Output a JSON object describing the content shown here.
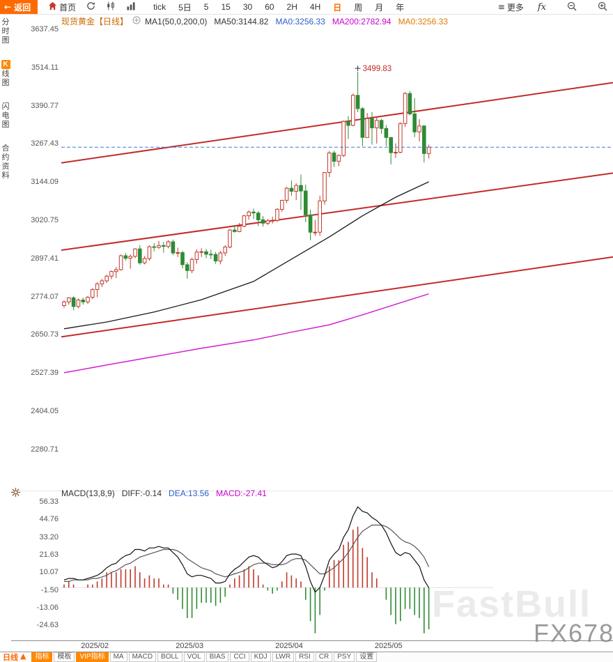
{
  "icons": {
    "back_arrow": "←",
    "hamburger": "≡",
    "up_triangle": "▲"
  },
  "toolbar": {
    "back_label": "返回",
    "home_label": "首页",
    "timeframes": [
      "tick",
      "5日",
      "5",
      "15",
      "30",
      "60",
      "2H",
      "4H",
      "日",
      "周",
      "月",
      "年"
    ],
    "selected_timeframe": "日",
    "more_label": "更多",
    "fx_label": "fx"
  },
  "sidebar": {
    "items": [
      {
        "name": "time-chart",
        "label": "分时图",
        "active": false
      },
      {
        "name": "kline-chart",
        "label": "K线图",
        "active": true
      },
      {
        "name": "lightning-chart",
        "label": "闪电图",
        "active": false
      },
      {
        "name": "contract-info",
        "label": "合约资料",
        "active": false
      }
    ]
  },
  "chart_header": {
    "symbol": "现货黄金【日线】",
    "items": [
      {
        "text": "MA1(50,0,200,0)",
        "color": "#333333"
      },
      {
        "text": "MA50:3144.82",
        "color": "#333333"
      },
      {
        "text": "MA0:3256.33",
        "color": "#2b5fc7"
      },
      {
        "text": "MA200:2782.94",
        "color": "#cc00cc"
      },
      {
        "text": "MA0:3256.33",
        "color": "#e07b00"
      }
    ]
  },
  "macd_header": {
    "items": [
      {
        "text": "MACD(13,8,9)",
        "color": "#333333"
      },
      {
        "text": "DIFF:-0.14",
        "color": "#333333"
      },
      {
        "text": "DEA:13.56",
        "color": "#2b5fc7"
      },
      {
        "text": "MACD:-27.41",
        "color": "#cc00cc"
      }
    ]
  },
  "watermark": {
    "fastbull": "FastBull",
    "fx678": "FX678"
  },
  "bottom_bar": {
    "period_label": "日线",
    "tabs": [
      {
        "label": "指标",
        "style": "orange"
      },
      {
        "label": "模板",
        "style": "plain"
      },
      {
        "label": "VIP指标",
        "style": "orange"
      },
      {
        "label": "MA",
        "style": "plain"
      },
      {
        "label": "MACD",
        "style": "plain"
      },
      {
        "label": "BOLL",
        "style": "plain"
      },
      {
        "label": "VOL",
        "style": "plain"
      },
      {
        "label": "BIAS",
        "style": "plain"
      },
      {
        "label": "CCI",
        "style": "plain"
      },
      {
        "label": "KDJ",
        "style": "plain"
      },
      {
        "label": "LWR",
        "style": "plain"
      },
      {
        "label": "RSI",
        "style": "plain"
      },
      {
        "label": "CR",
        "style": "plain"
      },
      {
        "label": "PSY",
        "style": "plain"
      },
      {
        "label": "设置",
        "style": "plain"
      }
    ]
  },
  "chart_data": {
    "type": "candlestick",
    "title": "现货黄金 日线",
    "main": {
      "y_ticks": [
        3637.45,
        3514.11,
        3390.77,
        3267.43,
        3144.09,
        3020.75,
        2897.41,
        2774.07,
        2650.73,
        2527.39,
        2404.05,
        2280.71
      ],
      "x_labels": [
        {
          "label": "2025/02",
          "index": 7
        },
        {
          "label": "2025/03",
          "index": 27
        },
        {
          "label": "2025/04",
          "index": 48
        },
        {
          "label": "2025/05",
          "index": 69
        }
      ],
      "colors": {
        "up": "#c0392b",
        "down": "#2e8b34",
        "trendline": "#c22b2b",
        "last_price": "#3b7dd8",
        "ma50": "#1a1a1a",
        "ma200": "#d020d0"
      },
      "last_price_line": 3256.33,
      "annotation": {
        "text": "3499.83",
        "candle_index": 62,
        "color": "#c22b2b"
      },
      "trendlines": [
        {
          "price_left": 3206,
          "price_right": 3465
        },
        {
          "price_left": 2924,
          "price_right": 3173
        },
        {
          "price_left": 2644,
          "price_right": 2902
        }
      ],
      "ma50_points": [
        [
          0,
          2670
        ],
        [
          9,
          2692
        ],
        [
          19,
          2724
        ],
        [
          29,
          2764
        ],
        [
          40,
          2823
        ],
        [
          48,
          2895
        ],
        [
          56,
          2967
        ],
        [
          63,
          3035
        ],
        [
          70,
          3095
        ],
        [
          77,
          3144.82
        ]
      ],
      "ma200_points": [
        [
          0,
          2528
        ],
        [
          9,
          2553
        ],
        [
          19,
          2580
        ],
        [
          29,
          2607
        ],
        [
          40,
          2634
        ],
        [
          48,
          2659
        ],
        [
          56,
          2683
        ],
        [
          63,
          2715
        ],
        [
          70,
          2749
        ],
        [
          77,
          2782.94
        ]
      ],
      "candles": [
        [
          "2025-01-23",
          2745,
          2762,
          2738,
          2757
        ],
        [
          "2025-01-24",
          2757,
          2772,
          2748,
          2770
        ],
        [
          "2025-01-27",
          2770,
          2775,
          2730,
          2742
        ],
        [
          "2025-01-28",
          2742,
          2768,
          2736,
          2763
        ],
        [
          "2025-01-29",
          2763,
          2771,
          2748,
          2757
        ],
        [
          "2025-01-30",
          2757,
          2776,
          2750,
          2772
        ],
        [
          "2025-01-31",
          2772,
          2801,
          2765,
          2797
        ],
        [
          "2025-02-03",
          2797,
          2820,
          2772,
          2815
        ],
        [
          "2025-02-04",
          2815,
          2831,
          2805,
          2825
        ],
        [
          "2025-02-05",
          2825,
          2845,
          2818,
          2840
        ],
        [
          "2025-02-06",
          2840,
          2858,
          2830,
          2855
        ],
        [
          "2025-02-07",
          2855,
          2870,
          2834,
          2861
        ],
        [
          "2025-02-10",
          2861,
          2910,
          2858,
          2906
        ],
        [
          "2025-02-11",
          2906,
          2915,
          2890,
          2898
        ],
        [
          "2025-02-12",
          2898,
          2910,
          2864,
          2904
        ],
        [
          "2025-02-13",
          2904,
          2930,
          2898,
          2928
        ],
        [
          "2025-02-14",
          2928,
          2940,
          2877,
          2883
        ],
        [
          "2025-02-17",
          2883,
          2905,
          2878,
          2897
        ],
        [
          "2025-02-18",
          2897,
          2940,
          2890,
          2935
        ],
        [
          "2025-02-19",
          2935,
          2947,
          2920,
          2933
        ],
        [
          "2025-02-20",
          2933,
          2954,
          2928,
          2939
        ],
        [
          "2025-02-21",
          2939,
          2950,
          2916,
          2936
        ],
        [
          "2025-02-24",
          2936,
          2956,
          2930,
          2951
        ],
        [
          "2025-02-25",
          2951,
          2958,
          2908,
          2915
        ],
        [
          "2025-02-26",
          2915,
          2932,
          2902,
          2916
        ],
        [
          "2025-02-27",
          2916,
          2922,
          2865,
          2877
        ],
        [
          "2025-02-28",
          2877,
          2885,
          2832,
          2858
        ],
        [
          "2025-03-03",
          2858,
          2900,
          2850,
          2894
        ],
        [
          "2025-03-04",
          2894,
          2927,
          2880,
          2918
        ],
        [
          "2025-03-05",
          2918,
          2930,
          2902,
          2919
        ],
        [
          "2025-03-06",
          2919,
          2928,
          2898,
          2911
        ],
        [
          "2025-03-07",
          2911,
          2925,
          2895,
          2910
        ],
        [
          "2025-03-10",
          2910,
          2918,
          2880,
          2889
        ],
        [
          "2025-03-11",
          2889,
          2922,
          2878,
          2915
        ],
        [
          "2025-03-12",
          2915,
          2940,
          2905,
          2934
        ],
        [
          "2025-03-13",
          2934,
          2992,
          2930,
          2989
        ],
        [
          "2025-03-14",
          2989,
          3005,
          2980,
          2984
        ],
        [
          "2025-03-17",
          2984,
          3012,
          2982,
          3001
        ],
        [
          "2025-03-18",
          3001,
          3038,
          2998,
          3035
        ],
        [
          "2025-03-19",
          3035,
          3052,
          3022,
          3047
        ],
        [
          "2025-03-20",
          3047,
          3058,
          3025,
          3044
        ],
        [
          "2025-03-21",
          3044,
          3050,
          3002,
          3022
        ],
        [
          "2025-03-24",
          3022,
          3034,
          3000,
          3011
        ],
        [
          "2025-03-25",
          3011,
          3025,
          3005,
          3019
        ],
        [
          "2025-03-26",
          3019,
          3032,
          3010,
          3020
        ],
        [
          "2025-03-27",
          3020,
          3060,
          3015,
          3056
        ],
        [
          "2025-03-28",
          3056,
          3087,
          3048,
          3085
        ],
        [
          "2025-03-31",
          3085,
          3128,
          3076,
          3124
        ],
        [
          "2025-04-01",
          3124,
          3149,
          3100,
          3114
        ],
        [
          "2025-04-02",
          3114,
          3140,
          3086,
          3133
        ],
        [
          "2025-04-03",
          3133,
          3168,
          3054,
          3115
        ],
        [
          "2025-04-04",
          3115,
          3136,
          3015,
          3038
        ],
        [
          "2025-04-07",
          3038,
          3055,
          2956,
          2982
        ],
        [
          "2025-04-08",
          2982,
          3022,
          2970,
          2982
        ],
        [
          "2025-04-09",
          2982,
          3100,
          2970,
          3083
        ],
        [
          "2025-04-10",
          3083,
          3176,
          3071,
          3175
        ],
        [
          "2025-04-11",
          3175,
          3245,
          3160,
          3238
        ],
        [
          "2025-04-14",
          3238,
          3245,
          3193,
          3211
        ],
        [
          "2025-04-15",
          3211,
          3233,
          3195,
          3230
        ],
        [
          "2025-04-16",
          3230,
          3343,
          3225,
          3340
        ],
        [
          "2025-04-17",
          3340,
          3357,
          3283,
          3327
        ],
        [
          "2025-04-21",
          3327,
          3430,
          3324,
          3424
        ],
        [
          "2025-04-22",
          3424,
          3499.83,
          3370,
          3381
        ],
        [
          "2025-04-23",
          3381,
          3386,
          3260,
          3288
        ],
        [
          "2025-04-24",
          3288,
          3367,
          3287,
          3349
        ],
        [
          "2025-04-25",
          3349,
          3370,
          3265,
          3319
        ],
        [
          "2025-04-28",
          3319,
          3352,
          3268,
          3343
        ],
        [
          "2025-04-29",
          3343,
          3348,
          3300,
          3317
        ],
        [
          "2025-04-30",
          3317,
          3328,
          3260,
          3288
        ],
        [
          "2025-05-01",
          3288,
          3290,
          3201,
          3239
        ],
        [
          "2025-05-02",
          3239,
          3269,
          3222,
          3240
        ],
        [
          "2025-05-05",
          3240,
          3337,
          3237,
          3333
        ],
        [
          "2025-05-06",
          3333,
          3435,
          3322,
          3430
        ],
        [
          "2025-05-07",
          3430,
          3438,
          3360,
          3364
        ],
        [
          "2025-05-08",
          3364,
          3415,
          3289,
          3306
        ],
        [
          "2025-05-09",
          3306,
          3347,
          3275,
          3325
        ],
        [
          "2025-05-12",
          3325,
          3328,
          3207,
          3236
        ],
        [
          "2025-05-13",
          3236,
          3265,
          3220,
          3256.33
        ]
      ]
    },
    "macd": {
      "y_ticks": [
        56.33,
        44.76,
        33.2,
        21.63,
        10.07,
        -1.5,
        -13.06,
        -24.63
      ],
      "colors": {
        "diff": "#111111",
        "dea": "#555555"
      },
      "diff": [
        5,
        6,
        6,
        5,
        5,
        6,
        7,
        8,
        10,
        13,
        15,
        16,
        19,
        21,
        22,
        25,
        25,
        24,
        26,
        26,
        27,
        26,
        26,
        23,
        20,
        15,
        9,
        7,
        8,
        8,
        7,
        6,
        3,
        3,
        4,
        9,
        12,
        14,
        17,
        20,
        21,
        20,
        17,
        15,
        13,
        14,
        17,
        21,
        22,
        22,
        21,
        14,
        4,
        -3,
        0,
        8,
        18,
        22,
        25,
        33,
        38,
        47,
        53,
        50,
        49,
        46,
        44,
        41,
        36,
        29,
        23,
        21,
        23,
        22,
        18,
        14,
        5,
        -0.14
      ],
      "dea": [
        4,
        4,
        5,
        5,
        5,
        5,
        6,
        6,
        7,
        8,
        10,
        11,
        13,
        15,
        16,
        18,
        20,
        21,
        22,
        23,
        24,
        25,
        25,
        25,
        24,
        22,
        19,
        17,
        15,
        13,
        12,
        11,
        9,
        8,
        7,
        8,
        9,
        10,
        11,
        13,
        15,
        16,
        16,
        16,
        15,
        15,
        15,
        16,
        18,
        19,
        19,
        18,
        15,
        12,
        9,
        9,
        11,
        13,
        16,
        19,
        23,
        28,
        33,
        37,
        39,
        41,
        41,
        41,
        40,
        38,
        35,
        32,
        30,
        29,
        27,
        24,
        20,
        13.56
      ]
    }
  }
}
